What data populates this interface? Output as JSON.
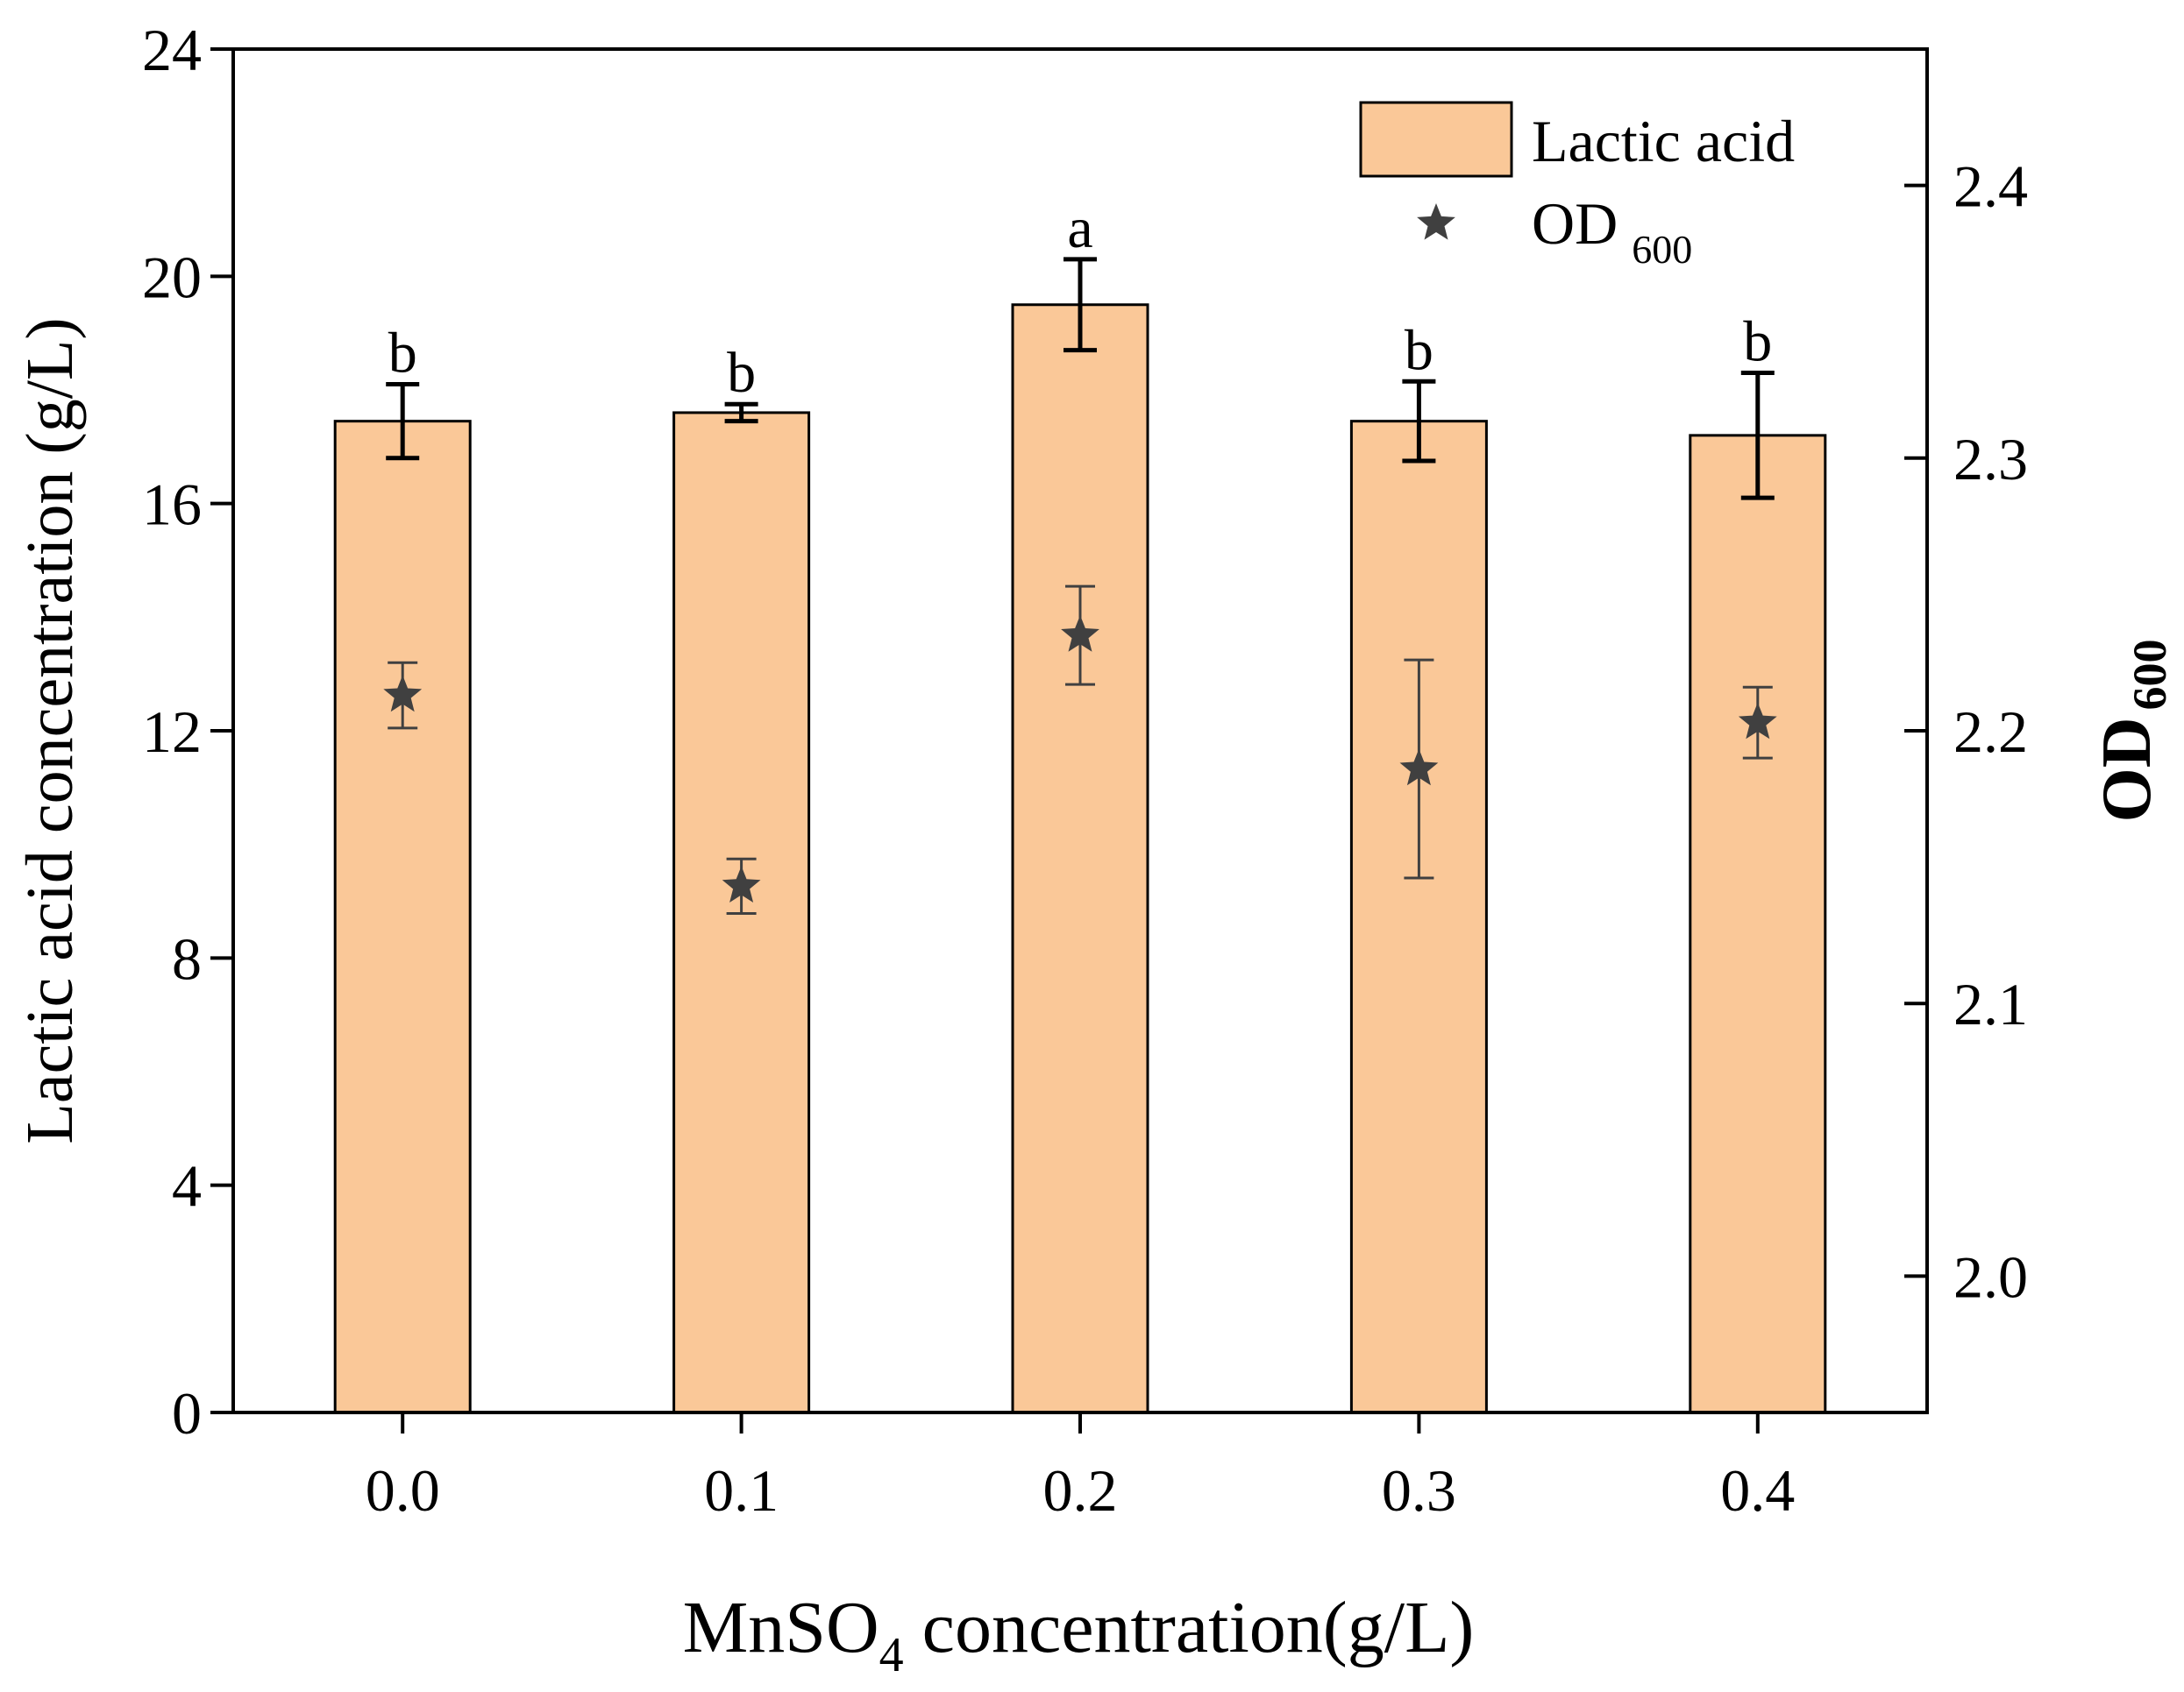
{
  "chart_data": {
    "type": "bar",
    "categories": [
      "0.0",
      "0.1",
      "0.2",
      "0.3",
      "0.4"
    ],
    "xlabel_main": "MnSO",
    "xlabel_sub": "4",
    "xlabel_rest": " concentration(g/L)",
    "ylabel": "Lactic acid concentration (g/L)",
    "y2label_main": "OD",
    "y2label_sub": "600",
    "ylim": [
      0,
      24
    ],
    "yticks": [
      "0",
      "4",
      "8",
      "12",
      "16",
      "20",
      "24"
    ],
    "y2lim": [
      1.95,
      2.45
    ],
    "y2ticks": [
      "2.0",
      "2.1",
      "2.2",
      "2.3",
      "2.4"
    ],
    "series": [
      {
        "name": "Lactic acid",
        "kind": "bar",
        "values": [
          17.45,
          17.6,
          19.5,
          17.45,
          17.2
        ],
        "errors": [
          0.65,
          0.15,
          0.8,
          0.7,
          1.1
        ],
        "letters": [
          "b",
          "b",
          "a",
          "b",
          "b"
        ],
        "color": "#FAC898"
      },
      {
        "name": "OD",
        "name_sub": "600",
        "kind": "scatter",
        "marker": "star",
        "values": [
          2.213,
          2.143,
          2.235,
          2.186,
          2.203
        ],
        "errors": [
          0.012,
          0.01,
          0.018,
          0.04,
          0.013
        ],
        "color": "#404040"
      }
    ],
    "legend_position": "top-right"
  }
}
